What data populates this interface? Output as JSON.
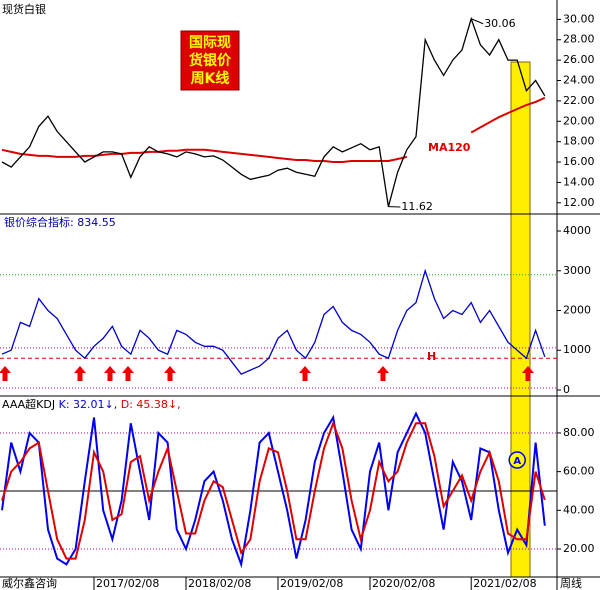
{
  "title": "现货白银",
  "source": "威尔鑫咨询",
  "period": "周线",
  "badge": [
    "国际现",
    "货银价",
    "周K线"
  ],
  "chart_data": [
    {
      "type": "line",
      "color": "#000000",
      "values": [
        16,
        15.5,
        16.5,
        17.5,
        19.5,
        20.5,
        19,
        18,
        17,
        16,
        16.5,
        17,
        17,
        16.8,
        14.5,
        16.5,
        17.5,
        17,
        16.8,
        16.5,
        17,
        16.8,
        16.5,
        16.6,
        16.2,
        15.5,
        14.8,
        14.3,
        14.5,
        14.7,
        15.2,
        15.4,
        15,
        14.8,
        14.6,
        16.5,
        17.5,
        17,
        17.4,
        17.8,
        17.2,
        17.5,
        11.62,
        15,
        17.2,
        18.5,
        28,
        26,
        24.5,
        26,
        27,
        30.06,
        27.5,
        26.5,
        28,
        26,
        26,
        23,
        24,
        22.5
      ],
      "ma_series": {
        "name": "MA120",
        "color": "#dd0000",
        "values": [
          17.2,
          17,
          16.8,
          16.7,
          16.6,
          16.6,
          16.5,
          16.5,
          16.5,
          16.6,
          16.6,
          16.7,
          16.8,
          16.8,
          16.9,
          16.9,
          17,
          17,
          17.1,
          17.1,
          17.2,
          17.2,
          17.2,
          17.1,
          17,
          16.9,
          16.8,
          16.7,
          16.6,
          16.5,
          16.4,
          16.3,
          16.2,
          16.2,
          16.1,
          16.1,
          16,
          16,
          16.1,
          16.1,
          16.1,
          16.1,
          16.1,
          16.3,
          16.5,
          null,
          null,
          null,
          null,
          null,
          null,
          18.9,
          19.4,
          19.9,
          20.4,
          20.8,
          21.2,
          21.6,
          21.9,
          22.3
        ]
      },
      "annotations": [
        {
          "text": "30.06",
          "index": 51
        },
        {
          "text": "11.62",
          "index": 42
        }
      ],
      "ylim": [
        11.0,
        31.9
      ],
      "yticks": [
        {
          "value": 12,
          "label": "12.00"
        },
        {
          "value": 14,
          "label": "14.00"
        },
        {
          "value": 16,
          "label": "16.00"
        },
        {
          "value": 18,
          "label": "18.00"
        },
        {
          "value": 20,
          "label": "20.00"
        },
        {
          "value": 22,
          "label": "22.00"
        },
        {
          "value": 24,
          "label": "24.00"
        },
        {
          "value": 26,
          "label": "26.00"
        },
        {
          "value": 28,
          "label": "28.00"
        },
        {
          "value": 30,
          "label": "30.00"
        }
      ]
    },
    {
      "type": "line",
      "title": "银价综合指标: 834.55",
      "color": "#0000cc",
      "values": [
        900,
        1000,
        1700,
        1600,
        2300,
        2000,
        1800,
        1400,
        1000,
        800,
        1100,
        1300,
        1600,
        1100,
        900,
        1500,
        1300,
        1000,
        900,
        1500,
        1400,
        1200,
        1100,
        1100,
        1000,
        700,
        400,
        500,
        600,
        800,
        1300,
        1500,
        1000,
        800,
        1200,
        1900,
        2100,
        1700,
        1500,
        1400,
        1200,
        900,
        800,
        1500,
        2000,
        2200,
        3000,
        2300,
        1800,
        2000,
        1900,
        2200,
        1700,
        2000,
        1600,
        1200,
        1000,
        800,
        1500,
        834.55
      ],
      "ref_lines": [
        {
          "value": 2900,
          "color": "#00aa00",
          "style": "dotted"
        },
        {
          "value": 1060,
          "color": "#aa00aa",
          "style": "dotted"
        },
        {
          "value": 800,
          "color": "#dd0000",
          "style": "dashed",
          "label": "H"
        },
        {
          "value": 50,
          "color": "#aa00aa",
          "style": "dotted"
        }
      ],
      "ylim": [
        -126,
        4403
      ],
      "yticks": [
        0,
        1000,
        2000,
        3000,
        4000
      ]
    },
    {
      "type": "line",
      "title": "AAA超KDJ",
      "categories": [
        null,
        null,
        null,
        null,
        null,
        null,
        null,
        null,
        null,
        null,
        "2017/02/08",
        null,
        null,
        null,
        null,
        null,
        null,
        null,
        null,
        null,
        "2018/02/08",
        null,
        null,
        null,
        null,
        null,
        null,
        null,
        null,
        null,
        "2019/02/08",
        null,
        null,
        null,
        null,
        null,
        null,
        null,
        null,
        null,
        "2020/02/08",
        null,
        null,
        null,
        null,
        null,
        null,
        null,
        null,
        null,
        null,
        "2021/02/08",
        null,
        null,
        null,
        null,
        null,
        null,
        null,
        null
      ],
      "series": [
        {
          "name": "K: 32.01↓,",
          "color": "#0000ee",
          "values": [
            40,
            75,
            60,
            80,
            75,
            30,
            15,
            12,
            20,
            55,
            88,
            40,
            25,
            45,
            85,
            60,
            35,
            80,
            75,
            30,
            20,
            35,
            55,
            60,
            45,
            25,
            12,
            40,
            75,
            80,
            60,
            40,
            15,
            35,
            65,
            80,
            88,
            60,
            30,
            20,
            60,
            75,
            40,
            70,
            80,
            90,
            80,
            55,
            30,
            65,
            55,
            35,
            72,
            70,
            40,
            18,
            30,
            22,
            75,
            32.01
          ]
        },
        {
          "name": "D: 45.38↓,",
          "color": "#dd0000",
          "values": [
            45,
            60,
            65,
            72,
            75,
            50,
            25,
            15,
            15,
            35,
            70,
            60,
            35,
            38,
            65,
            68,
            45,
            60,
            72,
            50,
            28,
            28,
            45,
            55,
            52,
            35,
            18,
            25,
            55,
            72,
            70,
            50,
            25,
            25,
            50,
            72,
            85,
            72,
            45,
            25,
            40,
            65,
            55,
            60,
            75,
            85,
            85,
            68,
            42,
            50,
            58,
            45,
            60,
            70,
            55,
            28,
            25,
            25,
            60,
            45.38
          ]
        }
      ],
      "ref_lines": [
        {
          "value": 80,
          "color": "#aa00aa",
          "style": "dotted"
        },
        {
          "value": 50,
          "color": "#000000",
          "style": "solid"
        },
        {
          "value": 20,
          "color": "#aa00aa",
          "style": "dotted"
        }
      ],
      "annotations": [
        {
          "text": "A",
          "index": 56,
          "value": 66
        }
      ],
      "ylim": [
        5.5,
        98.6
      ],
      "yticks": [
        {
          "value": 20,
          "label": "20.00"
        },
        {
          "value": 40,
          "label": "40.00"
        },
        {
          "value": 60,
          "label": "60.00"
        },
        {
          "value": 80,
          "label": "80.00"
        }
      ]
    }
  ]
}
